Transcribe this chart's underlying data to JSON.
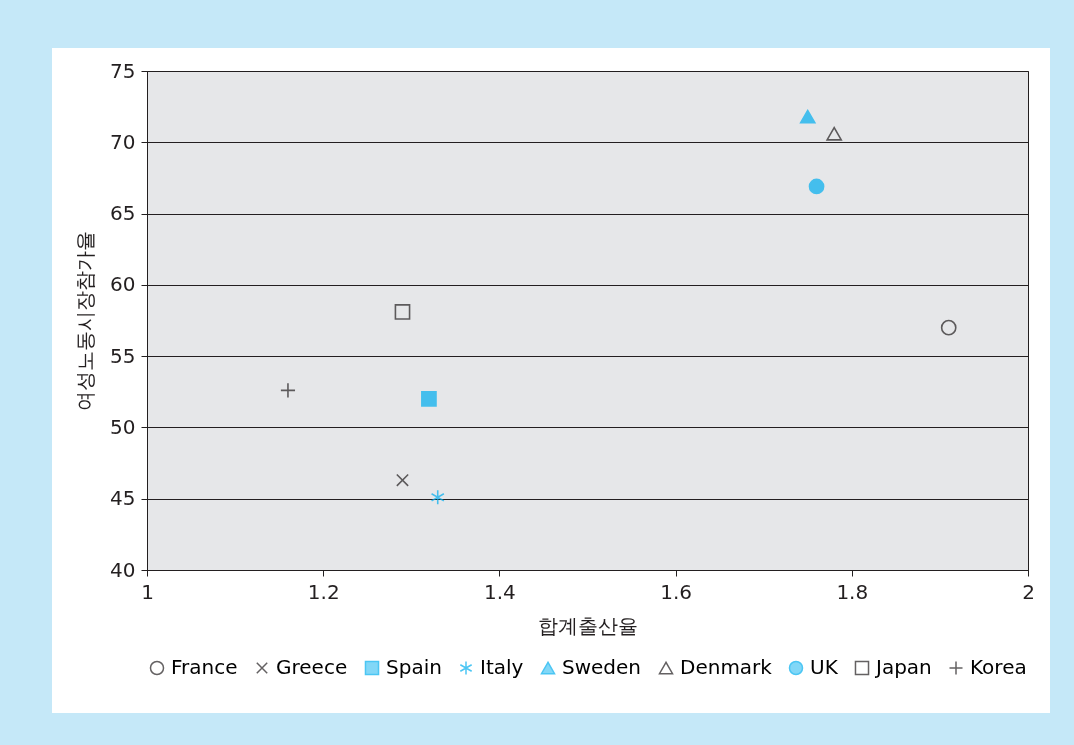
{
  "chart_data": {
    "type": "scatter",
    "xlabel": "합계출산율",
    "ylabel": "여성노동시장참가율",
    "xlim": [
      1,
      2
    ],
    "xticks": [
      {
        "value": 1,
        "label": "1"
      },
      1.2,
      1.4,
      1.6,
      1.8,
      {
        "value": 2,
        "label": "2"
      }
    ],
    "ylim": [
      40,
      75
    ],
    "yticks": [
      40,
      45,
      50,
      55,
      60,
      65,
      70,
      75
    ],
    "grid": "y",
    "legend": "bottom",
    "series": [
      {
        "name": "France",
        "color": "#231f20",
        "marker": "circle",
        "x": [
          1.91
        ],
        "values": [
          57
        ]
      },
      {
        "name": "Greece",
        "color": "#231f20",
        "marker": "cross",
        "x": [
          1.29
        ],
        "values": [
          46.3
        ]
      },
      {
        "name": "Spain",
        "color": "#00aeef",
        "marker": "square",
        "x": [
          1.32
        ],
        "values": [
          52
        ]
      },
      {
        "name": "Italy",
        "color": "#00aeef",
        "x": [
          1.33
        ],
        "values": [
          45.1
        ]
      },
      {
        "name": "Sweden",
        "color": "#00aeef",
        "marker": "triangle",
        "x": [
          1.75
        ],
        "values": [
          71.8
        ]
      },
      {
        "name": "Denmark",
        "color": "#231f20",
        "marker": "triangle",
        "x": [
          1.78
        ],
        "values": [
          70.6
        ]
      },
      {
        "name": "UK",
        "color": "#00aeef",
        "marker": "circle",
        "x": [
          1.76
        ],
        "values": [
          66.9
        ]
      },
      {
        "name": "Japan",
        "color": "#231f20",
        "marker": "square",
        "x": [
          1.29
        ],
        "values": [
          58.1
        ]
      },
      {
        "name": "Korea",
        "color": "#231f20",
        "marker": "plus",
        "x": [
          1.16
        ],
        "values": [
          52.6
        ]
      }
    ]
  }
}
